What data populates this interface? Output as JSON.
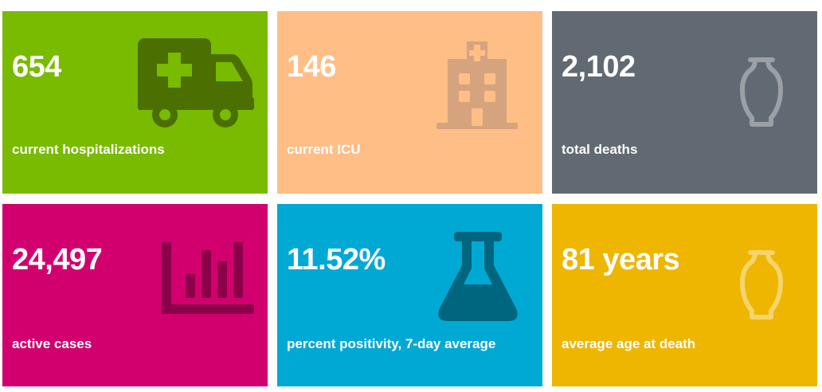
{
  "colors": {
    "hospitalizations": "#78bb00",
    "icu": "#ffbe86",
    "deaths": "#616a72",
    "cases": "#d2006e",
    "positivity": "#00a9d4",
    "age": "#eeb600"
  },
  "tiles": [
    {
      "value": "654",
      "label": "current hospitalizations",
      "icon": "ambulance-icon"
    },
    {
      "value": "146",
      "label": "current ICU",
      "icon": "hospital-icon"
    },
    {
      "value": "2,102",
      "label": "total deaths",
      "icon": "urn-icon"
    },
    {
      "value": "24,497",
      "label": "active cases",
      "icon": "bar-chart-icon"
    },
    {
      "value": "11.52%",
      "label": "percent positivity, 7-day average",
      "icon": "flask-icon"
    },
    {
      "value": "81 years",
      "label": "average age at death",
      "icon": "urn-icon"
    }
  ]
}
